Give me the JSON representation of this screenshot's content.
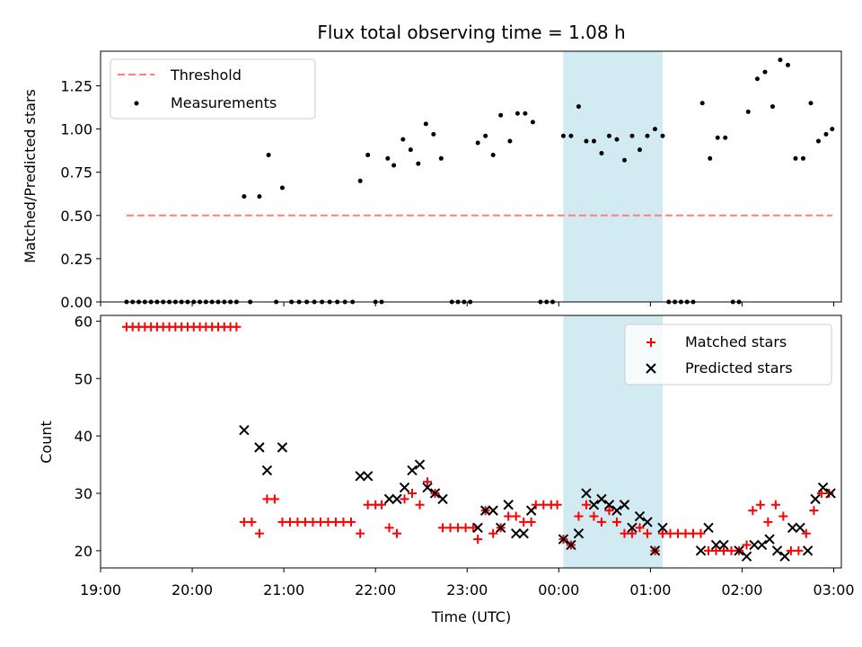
{
  "chart_data": [
    {
      "type": "scatter",
      "title": "Flux total observing time = 1.08 h",
      "ylabel": "Matched/Predicted stars",
      "xlabel": "",
      "xlim": [
        "19:00",
        "03:05"
      ],
      "ylim": [
        0,
        1.45
      ],
      "yticks": [
        "0.00",
        "0.25",
        "0.50",
        "0.75",
        "1.00",
        "1.25"
      ],
      "highlight_span": {
        "from": "00:03",
        "to": "01:08",
        "color": "#add8e6"
      },
      "legend": {
        "position": "top-left",
        "entries": [
          "Threshold",
          "Measurements"
        ]
      },
      "series": [
        {
          "name": "Threshold",
          "style": "dashed-line",
          "color": "#ff7f7f",
          "x": [
            "19:17",
            "02:59"
          ],
          "y": [
            0.5,
            0.5
          ]
        },
        {
          "name": "Measurements",
          "style": "dot",
          "color": "#000000",
          "points": [
            [
              "19:17",
              0
            ],
            [
              "19:21",
              0
            ],
            [
              "19:25",
              0
            ],
            [
              "19:29",
              0
            ],
            [
              "19:33",
              0
            ],
            [
              "19:37",
              0
            ],
            [
              "19:41",
              0
            ],
            [
              "19:45",
              0
            ],
            [
              "19:49",
              0
            ],
            [
              "19:53",
              0
            ],
            [
              "19:57",
              0
            ],
            [
              "20:01",
              0
            ],
            [
              "20:05",
              0
            ],
            [
              "20:09",
              0
            ],
            [
              "20:13",
              0
            ],
            [
              "20:17",
              0
            ],
            [
              "20:21",
              0
            ],
            [
              "20:25",
              0
            ],
            [
              "20:29",
              0
            ],
            [
              "20:34",
              0.61
            ],
            [
              "20:38",
              0
            ],
            [
              "20:44",
              0.61
            ],
            [
              "20:50",
              0.85
            ],
            [
              "20:55",
              0
            ],
            [
              "20:59",
              0.66
            ],
            [
              "21:05",
              0
            ],
            [
              "21:10",
              0
            ],
            [
              "21:15",
              0
            ],
            [
              "21:20",
              0
            ],
            [
              "21:25",
              0
            ],
            [
              "21:30",
              0
            ],
            [
              "21:35",
              0
            ],
            [
              "21:40",
              0
            ],
            [
              "21:45",
              0
            ],
            [
              "21:50",
              0.7
            ],
            [
              "21:55",
              0.85
            ],
            [
              "22:00",
              0
            ],
            [
              "22:04",
              0
            ],
            [
              "22:08",
              0.83
            ],
            [
              "22:12",
              0.79
            ],
            [
              "22:18",
              0.94
            ],
            [
              "22:23",
              0.88
            ],
            [
              "22:28",
              0.8
            ],
            [
              "22:33",
              1.03
            ],
            [
              "22:38",
              0.97
            ],
            [
              "22:43",
              0.83
            ],
            [
              "22:50",
              0
            ],
            [
              "22:54",
              0
            ],
            [
              "22:58",
              0
            ],
            [
              "23:02",
              0
            ],
            [
              "23:07",
              0.92
            ],
            [
              "23:12",
              0.96
            ],
            [
              "23:17",
              0.85
            ],
            [
              "23:22",
              1.08
            ],
            [
              "23:28",
              0.93
            ],
            [
              "23:33",
              1.09
            ],
            [
              "23:38",
              1.09
            ],
            [
              "23:43",
              1.04
            ],
            [
              "23:48",
              0
            ],
            [
              "23:52",
              0
            ],
            [
              "23:56",
              0
            ],
            [
              "00:03",
              0.96
            ],
            [
              "00:08",
              0.96
            ],
            [
              "00:13",
              1.13
            ],
            [
              "00:18",
              0.93
            ],
            [
              "00:23",
              0.93
            ],
            [
              "00:28",
              0.86
            ],
            [
              "00:33",
              0.96
            ],
            [
              "00:38",
              0.94
            ],
            [
              "00:43",
              0.82
            ],
            [
              "00:48",
              0.96
            ],
            [
              "00:53",
              0.88
            ],
            [
              "00:58",
              0.96
            ],
            [
              "01:03",
              1.0
            ],
            [
              "01:08",
              0.96
            ],
            [
              "01:12",
              0
            ],
            [
              "01:16",
              0
            ],
            [
              "01:20",
              0
            ],
            [
              "01:24",
              0
            ],
            [
              "01:28",
              0
            ],
            [
              "01:34",
              1.15
            ],
            [
              "01:39",
              0.83
            ],
            [
              "01:44",
              0.95
            ],
            [
              "01:49",
              0.95
            ],
            [
              "01:54",
              0
            ],
            [
              "01:58",
              0
            ],
            [
              "02:04",
              1.1
            ],
            [
              "02:10",
              1.29
            ],
            [
              "02:15",
              1.33
            ],
            [
              "02:20",
              1.13
            ],
            [
              "02:25",
              1.4
            ],
            [
              "02:30",
              1.37
            ],
            [
              "02:35",
              0.83
            ],
            [
              "02:40",
              0.83
            ],
            [
              "02:45",
              1.15
            ],
            [
              "02:50",
              0.93
            ],
            [
              "02:55",
              0.97
            ],
            [
              "02:59",
              1.0
            ]
          ]
        }
      ]
    },
    {
      "type": "scatter",
      "title": "",
      "xlabel": "Time (UTC)",
      "ylabel": "Count",
      "xlim": [
        "19:00",
        "03:05"
      ],
      "ylim": [
        17,
        61
      ],
      "xticks": [
        "19:00",
        "20:00",
        "21:00",
        "22:00",
        "23:00",
        "00:00",
        "01:00",
        "02:00",
        "03:00"
      ],
      "yticks": [
        "20",
        "30",
        "40",
        "50",
        "60"
      ],
      "highlight_span": {
        "from": "00:03",
        "to": "01:08",
        "color": "#add8e6"
      },
      "legend": {
        "position": "top-right",
        "entries": [
          "Matched stars",
          "Predicted stars"
        ]
      },
      "series": [
        {
          "name": "Matched stars",
          "marker": "plus",
          "color": "#ff0000",
          "points": [
            [
              "19:17",
              59
            ],
            [
              "19:21",
              59
            ],
            [
              "19:25",
              59
            ],
            [
              "19:29",
              59
            ],
            [
              "19:33",
              59
            ],
            [
              "19:37",
              59
            ],
            [
              "19:41",
              59
            ],
            [
              "19:45",
              59
            ],
            [
              "19:49",
              59
            ],
            [
              "19:53",
              59
            ],
            [
              "19:57",
              59
            ],
            [
              "20:01",
              59
            ],
            [
              "20:05",
              59
            ],
            [
              "20:09",
              59
            ],
            [
              "20:13",
              59
            ],
            [
              "20:17",
              59
            ],
            [
              "20:21",
              59
            ],
            [
              "20:25",
              59
            ],
            [
              "20:29",
              59
            ],
            [
              "20:34",
              25
            ],
            [
              "20:39",
              25
            ],
            [
              "20:44",
              23
            ],
            [
              "20:49",
              29
            ],
            [
              "20:54",
              29
            ],
            [
              "20:59",
              25
            ],
            [
              "21:04",
              25
            ],
            [
              "21:09",
              25
            ],
            [
              "21:14",
              25
            ],
            [
              "21:19",
              25
            ],
            [
              "21:24",
              25
            ],
            [
              "21:29",
              25
            ],
            [
              "21:34",
              25
            ],
            [
              "21:39",
              25
            ],
            [
              "21:44",
              25
            ],
            [
              "21:50",
              23
            ],
            [
              "21:55",
              28
            ],
            [
              "22:00",
              28
            ],
            [
              "22:04",
              28
            ],
            [
              "22:09",
              24
            ],
            [
              "22:14",
              23
            ],
            [
              "22:19",
              29
            ],
            [
              "22:24",
              30
            ],
            [
              "22:29",
              28
            ],
            [
              "22:34",
              32
            ],
            [
              "22:39",
              30
            ],
            [
              "22:44",
              24
            ],
            [
              "22:49",
              24
            ],
            [
              "22:54",
              24
            ],
            [
              "22:59",
              24
            ],
            [
              "23:04",
              24
            ],
            [
              "23:07",
              22
            ],
            [
              "23:12",
              27
            ],
            [
              "23:17",
              23
            ],
            [
              "23:22",
              24
            ],
            [
              "23:27",
              26
            ],
            [
              "23:32",
              26
            ],
            [
              "23:37",
              25
            ],
            [
              "23:42",
              25
            ],
            [
              "23:45",
              28
            ],
            [
              "23:50",
              28
            ],
            [
              "23:55",
              28
            ],
            [
              "23:59",
              28
            ],
            [
              "00:03",
              22
            ],
            [
              "00:08",
              21
            ],
            [
              "00:13",
              26
            ],
            [
              "00:18",
              28
            ],
            [
              "00:23",
              26
            ],
            [
              "00:28",
              25
            ],
            [
              "00:33",
              27
            ],
            [
              "00:38",
              25
            ],
            [
              "00:43",
              23
            ],
            [
              "00:48",
              23
            ],
            [
              "00:53",
              24
            ],
            [
              "00:58",
              23
            ],
            [
              "01:03",
              20
            ],
            [
              "01:08",
              23
            ],
            [
              "01:13",
              23
            ],
            [
              "01:18",
              23
            ],
            [
              "01:23",
              23
            ],
            [
              "01:28",
              23
            ],
            [
              "01:33",
              23
            ],
            [
              "01:38",
              20
            ],
            [
              "01:43",
              20
            ],
            [
              "01:48",
              20
            ],
            [
              "01:53",
              20
            ],
            [
              "01:58",
              20
            ],
            [
              "02:03",
              21
            ],
            [
              "02:07",
              27
            ],
            [
              "02:12",
              28
            ],
            [
              "02:17",
              25
            ],
            [
              "02:22",
              28
            ],
            [
              "02:27",
              26
            ],
            [
              "02:32",
              20
            ],
            [
              "02:37",
              20
            ],
            [
              "02:42",
              23
            ],
            [
              "02:47",
              27
            ],
            [
              "02:52",
              30
            ],
            [
              "02:57",
              30
            ]
          ]
        },
        {
          "name": "Predicted stars",
          "marker": "x",
          "color": "#000000",
          "points": [
            [
              "20:34",
              41
            ],
            [
              "20:44",
              38
            ],
            [
              "20:49",
              34
            ],
            [
              "20:59",
              38
            ],
            [
              "21:50",
              33
            ],
            [
              "21:55",
              33
            ],
            [
              "22:09",
              29
            ],
            [
              "22:14",
              29
            ],
            [
              "22:19",
              31
            ],
            [
              "22:24",
              34
            ],
            [
              "22:29",
              35
            ],
            [
              "22:34",
              31
            ],
            [
              "22:39",
              30
            ],
            [
              "22:44",
              29
            ],
            [
              "23:07",
              24
            ],
            [
              "23:12",
              27
            ],
            [
              "23:17",
              27
            ],
            [
              "23:22",
              24
            ],
            [
              "23:27",
              28
            ],
            [
              "23:32",
              23
            ],
            [
              "23:37",
              23
            ],
            [
              "23:42",
              27
            ],
            [
              "00:03",
              22
            ],
            [
              "00:08",
              21
            ],
            [
              "00:13",
              23
            ],
            [
              "00:18",
              30
            ],
            [
              "00:23",
              28
            ],
            [
              "00:28",
              29
            ],
            [
              "00:33",
              28
            ],
            [
              "00:38",
              27
            ],
            [
              "00:43",
              28
            ],
            [
              "00:48",
              24
            ],
            [
              "00:53",
              26
            ],
            [
              "00:58",
              25
            ],
            [
              "01:03",
              20
            ],
            [
              "01:08",
              24
            ],
            [
              "01:33",
              20
            ],
            [
              "01:38",
              24
            ],
            [
              "01:43",
              21
            ],
            [
              "01:48",
              21
            ],
            [
              "01:58",
              20
            ],
            [
              "02:03",
              19
            ],
            [
              "02:08",
              21
            ],
            [
              "02:13",
              21
            ],
            [
              "02:18",
              22
            ],
            [
              "02:23",
              20
            ],
            [
              "02:28",
              19
            ],
            [
              "02:33",
              24
            ],
            [
              "02:38",
              24
            ],
            [
              "02:43",
              20
            ],
            [
              "02:48",
              29
            ],
            [
              "02:53",
              31
            ],
            [
              "02:58",
              30
            ]
          ]
        }
      ]
    }
  ]
}
